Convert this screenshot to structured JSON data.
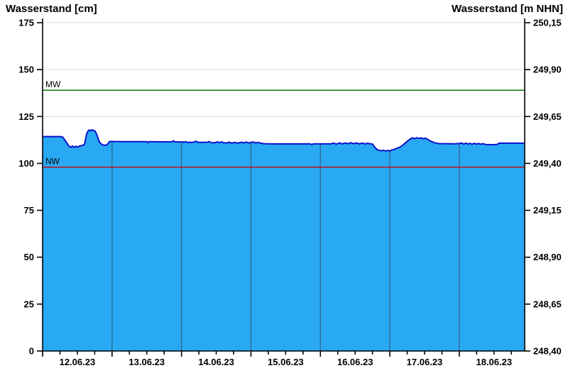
{
  "chart_data": {
    "type": "area",
    "title": "",
    "legend": false,
    "grid": true,
    "y_left": {
      "title": "Wasserstand [cm]",
      "unit": "cm",
      "range": [
        0,
        175
      ],
      "tick_values": [
        175,
        150,
        125,
        100,
        75,
        50,
        25,
        0
      ],
      "tick_labels": [
        "175",
        "150",
        "125",
        "100",
        "75",
        "50",
        "25",
        "0"
      ]
    },
    "y_right": {
      "title": "Wasserstand [m NHN]",
      "unit": "m NHN",
      "range": [
        248.4,
        250.15
      ],
      "tick_labels": [
        "250,15",
        "249,90",
        "249,65",
        "249,40",
        "249,15",
        "248,90",
        "248,65",
        "248,40"
      ]
    },
    "x": {
      "tick_labels": [
        "12.06.23",
        "13.06.23",
        "14.06.23",
        "15.06.23",
        "16.06.23",
        "17.06.23",
        "18.06.23"
      ],
      "hours_total": 166.6,
      "hours_per_day": 24,
      "minor_tick_hours": 6
    },
    "reference_lines": [
      {
        "label": "MW",
        "value_cm": 139,
        "value_m_nhn": "249,79",
        "color": "#007d00"
      },
      {
        "label": "NW",
        "value_cm": 98,
        "value_m_nhn": "249,38",
        "color": "#d10000"
      }
    ],
    "series": [
      {
        "name": "Wasserstand",
        "unit": "cm",
        "points": [
          [
            0,
            114.3
          ],
          [
            6.1,
            114.3
          ],
          [
            7.0,
            114.0
          ],
          [
            8.1,
            111.5
          ],
          [
            9.1,
            109.2
          ],
          [
            9.8,
            108.6
          ],
          [
            10.3,
            109.3
          ],
          [
            10.9,
            108.5
          ],
          [
            11.5,
            109.2
          ],
          [
            12.1,
            108.7
          ],
          [
            12.8,
            109.3
          ],
          [
            13.7,
            109.5
          ],
          [
            14.5,
            110.3
          ],
          [
            15.2,
            115.5
          ],
          [
            15.7,
            117.3
          ],
          [
            16.1,
            117.8
          ],
          [
            16.6,
            117.4
          ],
          [
            17.1,
            117.9
          ],
          [
            17.7,
            117.6
          ],
          [
            18.1,
            117.2
          ],
          [
            18.7,
            115.5
          ],
          [
            19.6,
            111.5
          ],
          [
            20.4,
            110.2
          ],
          [
            21.1,
            109.7
          ],
          [
            22.1,
            109.7
          ],
          [
            22.6,
            110.5
          ],
          [
            23.1,
            111.6
          ],
          [
            24,
            111.7
          ],
          [
            27,
            111.6
          ],
          [
            30.7,
            111.6
          ],
          [
            34.4,
            111.6
          ],
          [
            36.1,
            111.6
          ],
          [
            36.4,
            111.0
          ],
          [
            36.8,
            111.6
          ],
          [
            39.8,
            111.5
          ],
          [
            42.9,
            111.5
          ],
          [
            44.7,
            111.5
          ],
          [
            45.2,
            112.1
          ],
          [
            45.6,
            111.5
          ],
          [
            48,
            111.4
          ],
          [
            49.6,
            111.5
          ],
          [
            50.2,
            111.0
          ],
          [
            50.9,
            111.4
          ],
          [
            51.5,
            111.1
          ],
          [
            53.1,
            111.8
          ],
          [
            53.6,
            111.2
          ],
          [
            55.5,
            111.2
          ],
          [
            57.2,
            111.3
          ],
          [
            57.6,
            111.7
          ],
          [
            58.1,
            111.1
          ],
          [
            59.5,
            111.0
          ],
          [
            60.4,
            111.5
          ],
          [
            61.1,
            111.0
          ],
          [
            61.8,
            111.5
          ],
          [
            62.5,
            111.0
          ],
          [
            63.7,
            110.9
          ],
          [
            64.4,
            111.3
          ],
          [
            65.4,
            110.8
          ],
          [
            66.4,
            111.2
          ],
          [
            67.4,
            110.8
          ],
          [
            68.8,
            111.3
          ],
          [
            69.5,
            110.9
          ],
          [
            70.4,
            111.4
          ],
          [
            71.2,
            110.9
          ],
          [
            72,
            111.2
          ],
          [
            72.9,
            111.4
          ],
          [
            73.6,
            110.9
          ],
          [
            74.6,
            111.2
          ],
          [
            75.3,
            110.8
          ],
          [
            76.5,
            110.5
          ],
          [
            78.5,
            110.4
          ],
          [
            83.4,
            110.4
          ],
          [
            88.3,
            110.4
          ],
          [
            92.5,
            110.4
          ],
          [
            93.0,
            110.0
          ],
          [
            93.5,
            110.4
          ],
          [
            96,
            110.4
          ],
          [
            98.2,
            110.4
          ],
          [
            99.6,
            110.4
          ],
          [
            100.6,
            110.8
          ],
          [
            101.6,
            110.3
          ],
          [
            102.6,
            110.9
          ],
          [
            103.6,
            110.4
          ],
          [
            104.5,
            110.9
          ],
          [
            105.5,
            110.5
          ],
          [
            106.5,
            111.0
          ],
          [
            107.5,
            110.5
          ],
          [
            108.5,
            110.9
          ],
          [
            109.4,
            110.4
          ],
          [
            110.4,
            110.8
          ],
          [
            111.4,
            110.4
          ],
          [
            112.4,
            110.7
          ],
          [
            113.4,
            110.4
          ],
          [
            114.1,
            110.2
          ],
          [
            114.8,
            108.5
          ],
          [
            115.6,
            107.4
          ],
          [
            116.3,
            107.0
          ],
          [
            117.0,
            106.7
          ],
          [
            117.8,
            107.0
          ],
          [
            118.5,
            106.6
          ],
          [
            119.2,
            106.9
          ],
          [
            120,
            106.7
          ],
          [
            120.7,
            107.1
          ],
          [
            121.7,
            107.6
          ],
          [
            122.7,
            108.2
          ],
          [
            123.7,
            108.9
          ],
          [
            124.7,
            110.0
          ],
          [
            125.6,
            111.2
          ],
          [
            126.4,
            112.3
          ],
          [
            127.1,
            113.1
          ],
          [
            127.8,
            113.6
          ],
          [
            128.6,
            113.2
          ],
          [
            129.3,
            113.7
          ],
          [
            130.1,
            113.3
          ],
          [
            130.8,
            113.6
          ],
          [
            131.5,
            113.1
          ],
          [
            132.3,
            113.5
          ],
          [
            132.8,
            113.0
          ],
          [
            133.5,
            112.4
          ],
          [
            134.5,
            111.6
          ],
          [
            135.5,
            111.0
          ],
          [
            136.4,
            110.7
          ],
          [
            137.2,
            110.5
          ],
          [
            139.9,
            110.5
          ],
          [
            142.3,
            110.4
          ],
          [
            144,
            110.6
          ],
          [
            144.8,
            110.9
          ],
          [
            145.5,
            110.3
          ],
          [
            146.2,
            110.8
          ],
          [
            147.0,
            110.3
          ],
          [
            147.7,
            110.7
          ],
          [
            148.4,
            110.2
          ],
          [
            149.2,
            110.7
          ],
          [
            149.9,
            110.3
          ],
          [
            150.7,
            110.6
          ],
          [
            151.4,
            110.2
          ],
          [
            152.1,
            110.5
          ],
          [
            153.1,
            110.1
          ],
          [
            154.6,
            110.0
          ],
          [
            156.0,
            110.0
          ],
          [
            157.0,
            110.1
          ],
          [
            157.8,
            110.8
          ],
          [
            159.5,
            110.8
          ],
          [
            162.0,
            110.8
          ],
          [
            164.4,
            110.8
          ],
          [
            166.6,
            110.8
          ]
        ]
      }
    ],
    "colors": {
      "area_fill": "#29a9f3",
      "curve_line": "#0b12cc",
      "mw_line": "#007d00",
      "nw_line": "#d10000",
      "gridline": "#e3e3e3",
      "day_gridline": "#33678a",
      "axis": "#000000"
    }
  }
}
